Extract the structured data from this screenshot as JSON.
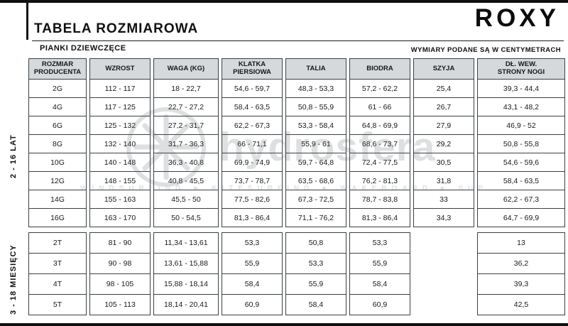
{
  "page": {
    "title": "TABELA ROZMIAROWA",
    "subtitle": "PIANKI DZIEWCZĘCE",
    "brand": "ROXY",
    "units_note": "WYMIARY PODANE SĄ W CENTYMETRACH"
  },
  "table": {
    "columns": [
      "ROZMIAR\nPRODUCENTA",
      "WZROST",
      "WAGA (KG)",
      "KLATKA\nPIERSIOWA",
      "TALIA",
      "BIODRA",
      "SZYJA",
      "DŁ. WEW.\nSTRONY NOGI"
    ],
    "groups": [
      {
        "label": "2 - 16 LAT",
        "rows": [
          [
            "2G",
            "112 - 117",
            "18 - 22,7",
            "54,6 - 59,7",
            "48,3 - 53,3",
            "57,2 - 62,2",
            "25,4",
            "39,3 - 44,4"
          ],
          [
            "4G",
            "117 - 125",
            "22,7 - 27,2",
            "58,4 - 63,5",
            "50,8 - 55,9",
            "61 - 66",
            "26,7",
            "43,1 - 48,2"
          ],
          [
            "6G",
            "125 - 132",
            "27,2 - 31,7",
            "62,2 - 67,3",
            "53,3 - 58,4",
            "64,8 - 69,9",
            "27,9",
            "46,9 - 52"
          ],
          [
            "8G",
            "132 - 140",
            "31,7 - 36,3",
            "66 - 71,1",
            "55,9 - 61",
            "68,6 - 73,7",
            "29,2",
            "50,8 - 55,8"
          ],
          [
            "10G",
            "140 - 148",
            "36,3 - 40,8",
            "69,9 - 74,9",
            "59,7 - 64,8",
            "72,4 - 77,5",
            "30,5",
            "54,6 - 59,6"
          ],
          [
            "12G",
            "148 - 155",
            "40,8 - 45,5",
            "73,7 - 78,7",
            "63,5 - 68,6",
            "76,2 - 81,3",
            "31,8",
            "58,4 - 63,5"
          ],
          [
            "14G",
            "155 - 163",
            "45,5 - 50",
            "77,5 - 82,6",
            "67,3 - 72,5",
            "78,7 - 83,8",
            "33",
            "62,2 - 67,3"
          ],
          [
            "16G",
            "163 - 170",
            "50 - 54,5",
            "81,3 - 86,4",
            "71,1 - 76,2",
            "81,3 - 86,4",
            "34,3",
            "64,7 - 69,9"
          ]
        ]
      },
      {
        "label": "3 - 18 MIESIĘCY",
        "rows": [
          [
            "2T",
            "81 - 90",
            "11,34 - 13,61",
            "53,3",
            "50,8",
            "53,3",
            "",
            "13"
          ],
          [
            "3T",
            "90 - 98",
            "13,61 - 15,88",
            "55,9",
            "53,3",
            "55,9",
            "",
            "36,2"
          ],
          [
            "4T",
            "98 - 105",
            "15,88 - 18,14",
            "58,4",
            "55,9",
            "58,4",
            "",
            "39,3"
          ],
          [
            "5T",
            "105 - 113",
            "18,14 - 20,41",
            "60,9",
            "58,4",
            "60,9",
            "",
            "42,5"
          ]
        ]
      }
    ]
  },
  "watermark": {
    "brand": "hydrosfera",
    "registered": "®",
    "tagline": "WINDSURFING ► KITESURFING ► WAKEBOARD ► SUP"
  },
  "colors": {
    "header_bg": "#d5d9dc",
    "border": "#3c4043",
    "ink": "#111111"
  }
}
